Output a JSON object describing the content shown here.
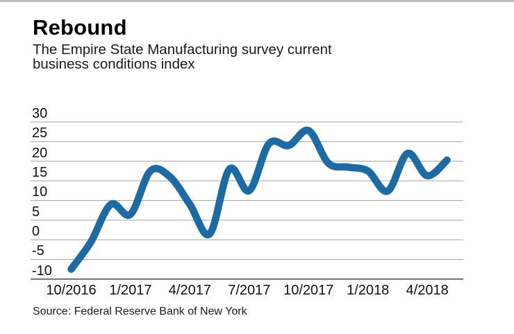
{
  "header": {
    "title": "Rebound",
    "subtitle": "The Empire State Manufacturing survey current business conditions index"
  },
  "source": "Source: Federal Reserve Bank of New York",
  "colors": {
    "line": "#1c6ba4",
    "gridline": "#a3a3a3",
    "axis": "#6b6b6b",
    "top_strip": "#bdbdbd",
    "text": "#111111"
  },
  "chart_data": {
    "type": "line",
    "title": "Rebound",
    "subtitle": "The Empire State Manufacturing survey current business conditions index",
    "xlabel": "",
    "ylabel": "",
    "x": [
      "10/2016",
      "11/2016",
      "12/2016",
      "1/2017",
      "2/2017",
      "3/2017",
      "4/2017",
      "5/2017",
      "6/2017",
      "7/2017",
      "8/2017",
      "9/2017",
      "10/2017",
      "11/2017",
      "12/2017",
      "1/2018",
      "2/2018",
      "3/2018",
      "4/2018",
      "5/2018"
    ],
    "values": [
      -7.5,
      -0.5,
      9,
      6.5,
      17.5,
      16,
      9,
      1.5,
      18,
      12.5,
      24.5,
      24,
      27.8,
      19.5,
      18.5,
      17.5,
      12.4,
      22,
      16.3,
      20.3
    ],
    "x_tick_labels": [
      "10/2016",
      "1/2017",
      "4/2017",
      "7/2017",
      "10/2017",
      "1/2018",
      "4/2018"
    ],
    "x_tick_indices": [
      0,
      3,
      6,
      9,
      12,
      15,
      18
    ],
    "y_ticks": [
      30,
      25,
      20,
      15,
      10,
      5,
      0,
      -5,
      -10
    ],
    "ylim": [
      -10,
      30
    ],
    "grid": "horizontal",
    "legend": "none",
    "line_style": "smooth-spline",
    "source": "Source: Federal Reserve Bank of New York"
  }
}
